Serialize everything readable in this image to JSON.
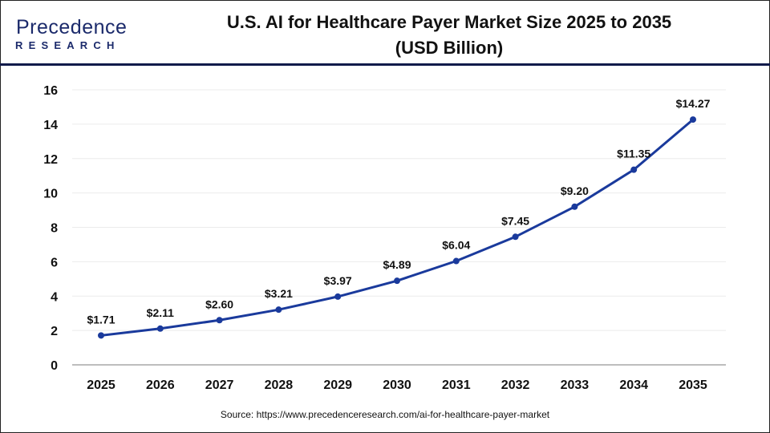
{
  "logo": {
    "line1": "Precedence",
    "line2": "RESEARCH"
  },
  "title_line1": "U.S. AI for Healthcare Payer Market Size 2025 to 2035",
  "title_line2": "(USD Billion)",
  "source": "Source: https://www.precedenceresearch.com/ai-for-healthcare-payer-market",
  "chart_data": {
    "type": "line",
    "title": "U.S. AI for Healthcare Payer Market Size 2025 to 2035 (USD Billion)",
    "categories": [
      "2025",
      "2026",
      "2027",
      "2028",
      "2029",
      "2030",
      "2031",
      "2032",
      "2033",
      "2034",
      "2035"
    ],
    "values": [
      1.71,
      2.11,
      2.6,
      3.21,
      3.97,
      4.89,
      6.04,
      7.45,
      9.2,
      11.35,
      14.27
    ],
    "data_labels": [
      "$1.71",
      "$2.11",
      "$2.60",
      "$3.21",
      "$3.97",
      "$4.89",
      "$6.04",
      "$7.45",
      "$9.20",
      "$11.35",
      "$14.27"
    ],
    "yticks": [
      "0",
      "2",
      "4",
      "6",
      "8",
      "10",
      "12",
      "14",
      "16"
    ],
    "ylim": [
      0,
      16
    ],
    "grid": true,
    "line_color": "#1a3a9c"
  }
}
